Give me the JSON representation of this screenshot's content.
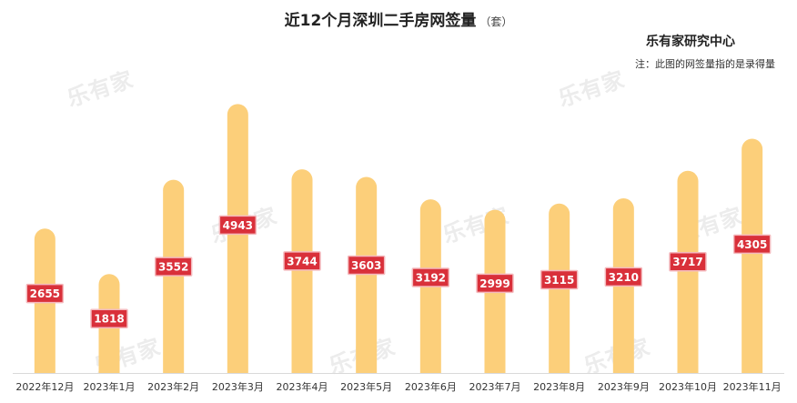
{
  "title": "近12个月深圳二手房网签量",
  "title_unit": "（套）",
  "source": "乐有家研究中心",
  "note": "注：此图的网签量指的是录得量",
  "watermark": "乐有家",
  "colors": {
    "bar": "#fccf7a",
    "label_bg": "#d9303a",
    "label_border": "#f4b9bd"
  },
  "chart_data": {
    "type": "bar",
    "title": "近12个月深圳二手房网签量",
    "categories": [
      "2022年12月",
      "2023年1月",
      "2023年2月",
      "2023年3月",
      "2023年4月",
      "2023年5月",
      "2023年6月",
      "2023年7月",
      "2023年8月",
      "2023年9月",
      "2023年10月",
      "2023年11月"
    ],
    "values": [
      2655,
      1818,
      3552,
      4943,
      3744,
      3603,
      3192,
      2999,
      3115,
      3210,
      3717,
      4305
    ],
    "ylim": [
      0,
      5100
    ],
    "grid": false,
    "legend": "none",
    "xlabel": "",
    "ylabel": ""
  }
}
